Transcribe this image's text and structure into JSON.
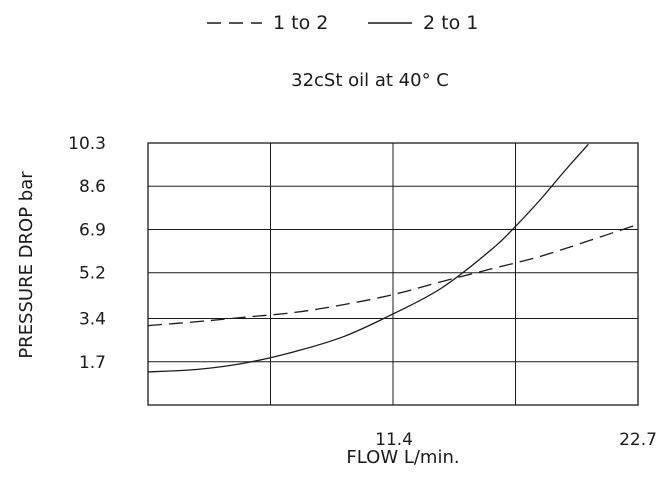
{
  "chart_data": {
    "type": "line",
    "subtitle": "32cSt oil at 40° C",
    "xlabel": "FLOW L/min.",
    "ylabel": "PRESSURE DROP bar",
    "xlim": [
      0,
      22.7
    ],
    "ylim": [
      0,
      10.3
    ],
    "x_tick_labels": [
      "11.4",
      "22.7"
    ],
    "x_gridlines": [
      5.675,
      11.35,
      17.025
    ],
    "y_tick_labels": [
      "1.7",
      "3.4",
      "5.2",
      "6.9",
      "8.6",
      "10.3"
    ],
    "y_tick_values": [
      1.7,
      3.4,
      5.2,
      6.9,
      8.6,
      10.3
    ],
    "grid": true,
    "legend": "top-center",
    "series": [
      {
        "name": "1 to 2",
        "line_style": "dashed",
        "color": "#1a1a1a",
        "x": [
          0,
          2.3,
          4.5,
          6.8,
          9.1,
          11.4,
          13.6,
          15.9,
          18.2,
          20.4,
          22.7
        ],
        "y": [
          3.12,
          3.28,
          3.45,
          3.64,
          3.95,
          4.35,
          4.85,
          5.35,
          5.85,
          6.45,
          7.1
        ]
      },
      {
        "name": "2 to 1",
        "line_style": "solid",
        "color": "#1a1a1a",
        "x": [
          0,
          2.3,
          4.5,
          6.8,
          9.1,
          11.4,
          13.6,
          15.9,
          17.0,
          18.2,
          19.3,
          20.4
        ],
        "y": [
          1.3,
          1.4,
          1.65,
          2.1,
          2.7,
          3.6,
          4.6,
          6.1,
          7.0,
          8.1,
          9.2,
          10.25
        ]
      }
    ]
  }
}
